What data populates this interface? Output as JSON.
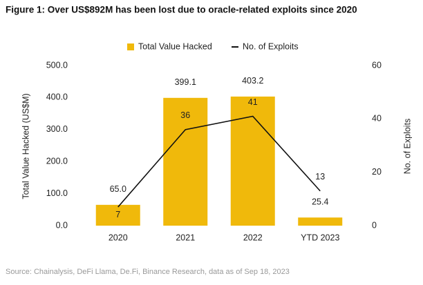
{
  "chart_data": {
    "type": "bar_line",
    "title": "Figure 1: Over US$892M has been lost due to oracle-related exploits since 2020",
    "source": "Source: Chainalysis, DeFi Llama, De.Fi, Binance Research, data as of Sep 18, 2023",
    "categories": [
      "2020",
      "2021",
      "2022",
      "YTD 2023"
    ],
    "y_label": "Total Value Hacked (US$M)",
    "y2_label": "No. of Exploits",
    "ylim": [
      0,
      500
    ],
    "yticks": [
      {
        "value": 0,
        "label": "0.0"
      },
      {
        "value": 100,
        "label": "100.0"
      },
      {
        "value": 200,
        "label": "200.0"
      },
      {
        "value": 300,
        "label": "300.0"
      },
      {
        "value": 400,
        "label": "400.0"
      },
      {
        "value": 500,
        "label": "500.0"
      }
    ],
    "y2lim": [
      0,
      60
    ],
    "y2ticks": [
      0,
      20,
      40,
      60
    ],
    "series": [
      {
        "name": "Total Value Hacked",
        "type": "bar",
        "color": "#f0b90b",
        "values": [
          65.0,
          399.1,
          403.2,
          25.4
        ],
        "value_labels": [
          "65.0",
          "399.1",
          "403.2",
          "25.4"
        ]
      },
      {
        "name": "No. of Exploits",
        "type": "line",
        "axis": "y2",
        "color": "#111111",
        "values": [
          7,
          36,
          41,
          13
        ]
      }
    ]
  }
}
